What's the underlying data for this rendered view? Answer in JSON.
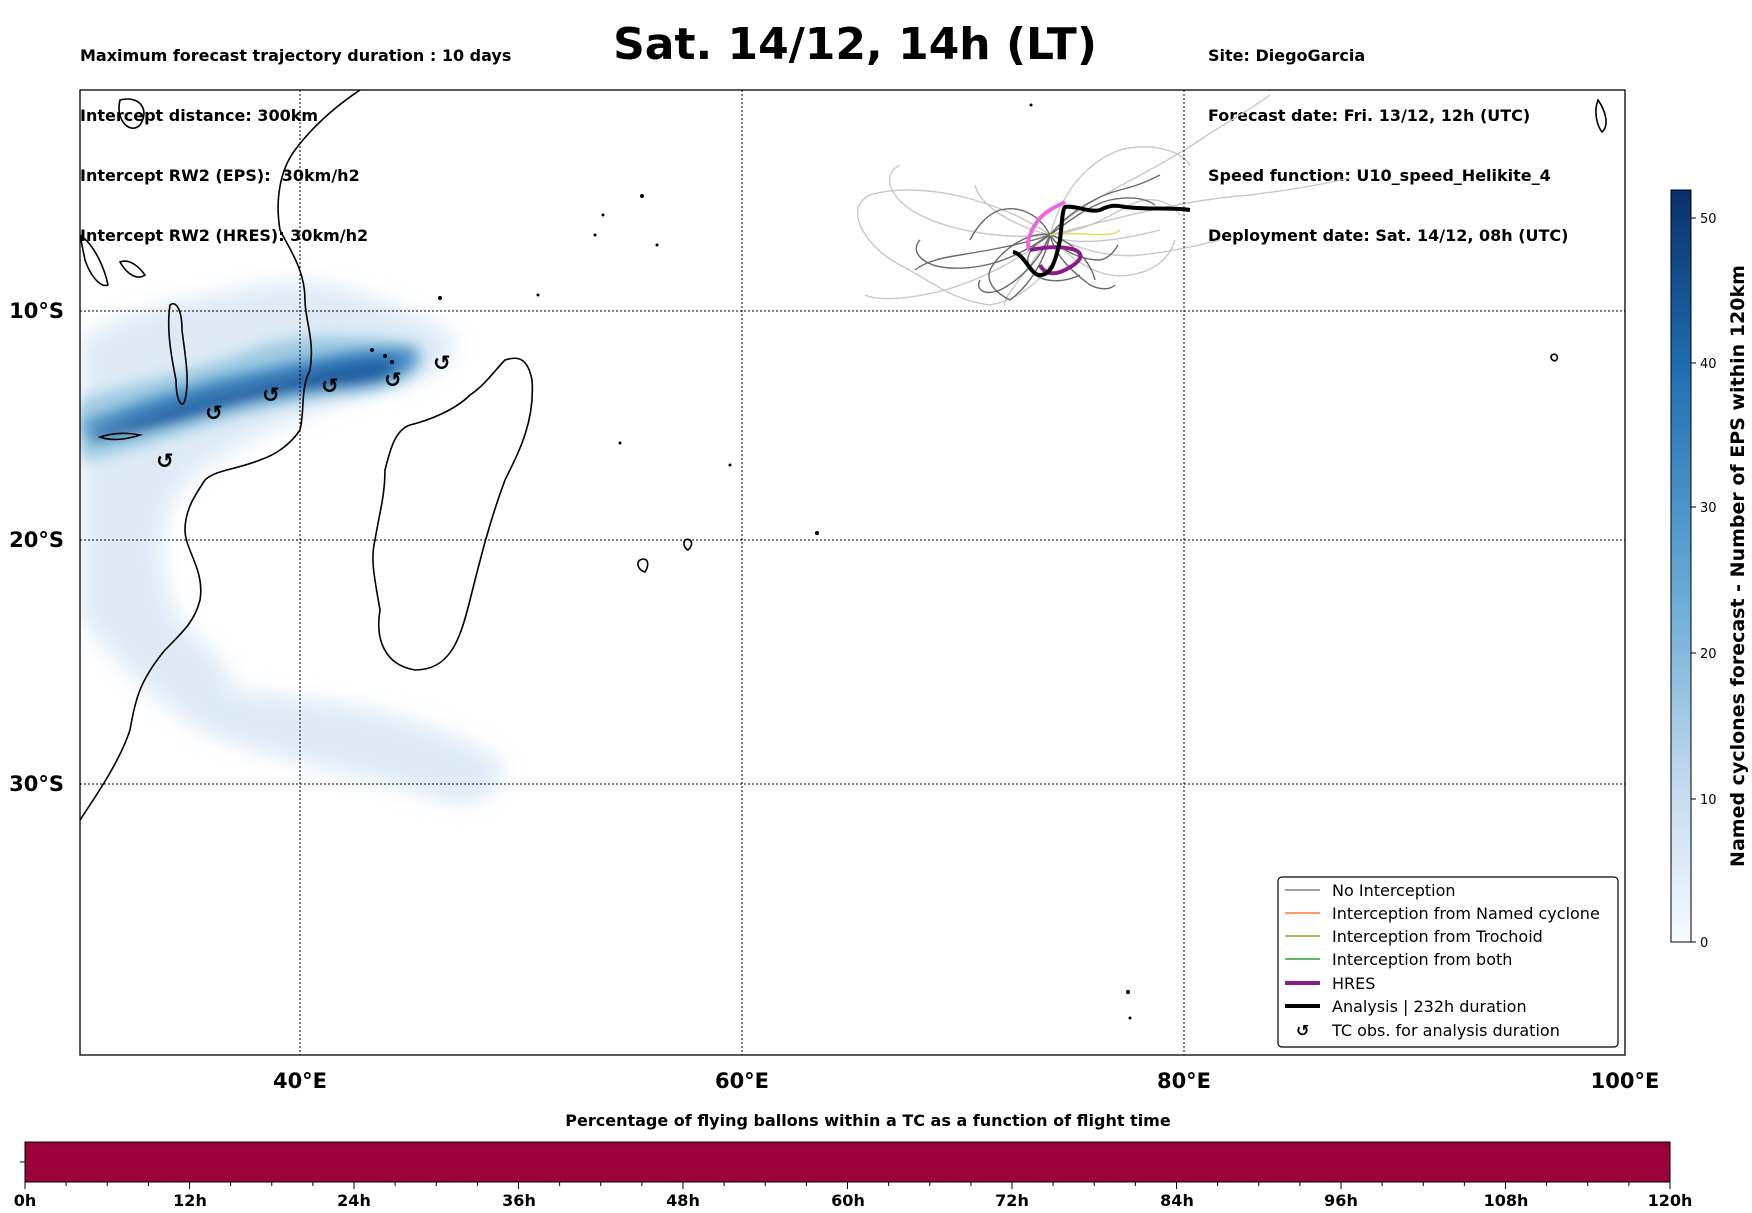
{
  "header": {
    "left_lines": [
      "Maximum forecast trajectory duration : 10 days",
      "Intercept distance: 300km",
      "Intercept RW2 (EPS):  30km/h2",
      "Intercept RW2 (HRES): 30km/h2"
    ],
    "title": "Sat. 14/12, 14h (LT)",
    "right_lines": [
      "Site: DiegoGarcia",
      "Forecast date: Fri. 13/12, 12h (UTC)",
      "Speed function: U10_speed_Helikite_4",
      "Deployment date: Sat. 14/12, 08h (UTC)"
    ]
  },
  "map": {
    "lon_ticks": [
      "40°E",
      "60°E",
      "80°E",
      "100°E"
    ],
    "lat_ticks": [
      "10°S",
      "20°S",
      "30°S"
    ],
    "gridlines": true
  },
  "colorbar": {
    "title": "Named cyclones forecast - Number of EPS within 120km",
    "ticks": [
      "0",
      "10",
      "20",
      "30",
      "40",
      "50"
    ],
    "colormap": [
      "#f7fbff",
      "#c6dbef",
      "#6baed6",
      "#2171b5",
      "#08306b"
    ]
  },
  "legend": {
    "items": [
      {
        "label": "No Interception",
        "color": "#808080",
        "style": "thin"
      },
      {
        "label": "Interception from Named cyclone",
        "color": "#ff7f3f",
        "style": "thin"
      },
      {
        "label": "Interception from Trochoid",
        "color": "#9a9a2a",
        "style": "thin"
      },
      {
        "label": "Interception from both",
        "color": "#2ca02c",
        "style": "thin"
      },
      {
        "label": "HRES",
        "color": "#8b1a8b",
        "style": "thick"
      },
      {
        "label": "Analysis | 232h duration",
        "color": "#000000",
        "style": "thick"
      },
      {
        "label": "TC obs. for analysis duration",
        "color": "#000000",
        "style": "symbol"
      }
    ]
  },
  "flight_bar": {
    "title": "Percentage of flying ballons within a TC as a function of flight time",
    "ticks": [
      "0h",
      "12h",
      "24h",
      "36h",
      "48h",
      "60h",
      "72h",
      "84h",
      "96h",
      "108h",
      "120h"
    ],
    "fill_color": "#9b003a"
  },
  "chart_data": {
    "type": "map",
    "extent_lon": [
      30,
      100
    ],
    "tc_obs_symbol": "↺",
    "analysis_track_end": "80°E",
    "flight_bar_percent_in_tc": 0
  }
}
